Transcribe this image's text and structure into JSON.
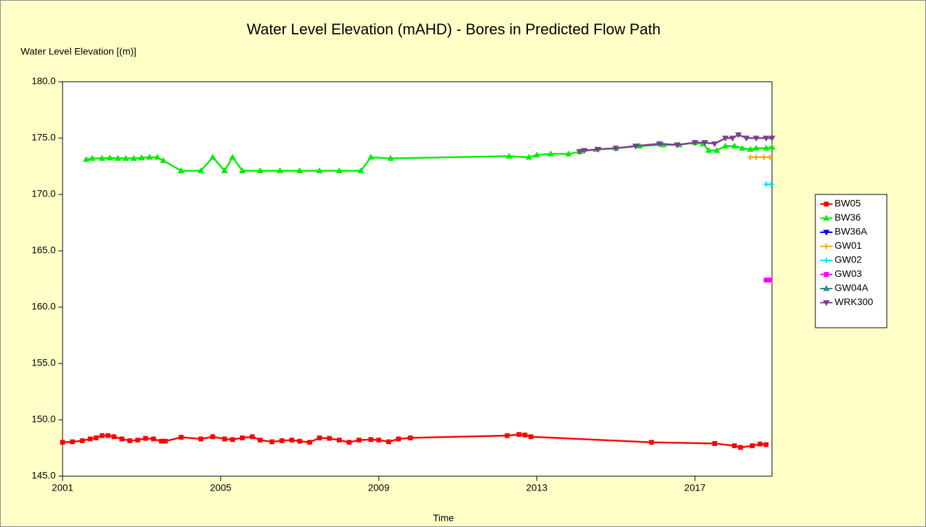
{
  "chart_data": {
    "type": "line",
    "title": "Water Level Elevation (mAHD) - Bores in Predicted Flow Path",
    "y_label": "Water Level Elevation [(m)]",
    "x_label": "Time",
    "xlim": [
      2001,
      2018.95
    ],
    "xticks": [
      2001,
      2005,
      2009,
      2013,
      2017
    ],
    "ylim": [
      145,
      180
    ],
    "yticks": [
      {
        "value": 145,
        "label": "145.0"
      },
      {
        "value": 150,
        "label": "150.0"
      },
      {
        "value": 155,
        "label": "155.0"
      },
      {
        "value": 160,
        "label": "160.0"
      },
      {
        "value": 165,
        "label": "165.0"
      },
      {
        "value": 170,
        "label": "170.0"
      },
      {
        "value": 175,
        "label": "175.0"
      },
      {
        "value": 180,
        "label": "180.0"
      }
    ],
    "legend": "right",
    "series": [
      {
        "name": "BW05",
        "color": "#ff0000",
        "marker": "square",
        "x": [
          2001.0,
          2001.25,
          2001.5,
          2001.7,
          2001.85,
          2002.0,
          2002.15,
          2002.3,
          2002.5,
          2002.7,
          2002.9,
          2003.1,
          2003.3,
          2003.5,
          2003.6,
          2004.0,
          2004.5,
          2004.8,
          2005.1,
          2005.3,
          2005.55,
          2005.8,
          2006.0,
          2006.3,
          2006.55,
          2006.8,
          2007.0,
          2007.25,
          2007.5,
          2007.75,
          2008.0,
          2008.25,
          2008.5,
          2008.8,
          2009.0,
          2009.25,
          2009.5,
          2009.8,
          2012.25,
          2012.55,
          2012.7,
          2012.85,
          2015.9,
          2017.5,
          2018.0,
          2018.15,
          2018.45,
          2018.65,
          2018.8
        ],
        "values": [
          148.0,
          148.05,
          148.15,
          148.3,
          148.4,
          148.6,
          148.6,
          148.5,
          148.3,
          148.15,
          148.2,
          148.35,
          148.3,
          148.1,
          148.1,
          148.45,
          148.3,
          148.5,
          148.3,
          148.25,
          148.4,
          148.5,
          148.2,
          148.05,
          148.15,
          148.2,
          148.1,
          148.0,
          148.4,
          148.35,
          148.2,
          148.0,
          148.2,
          148.25,
          148.2,
          148.05,
          148.3,
          148.4,
          148.6,
          148.7,
          148.65,
          148.5,
          148.0,
          147.9,
          147.7,
          147.55,
          147.7,
          147.85,
          147.8
        ]
      },
      {
        "name": "BW36",
        "color": "#00ee00",
        "marker": "triangle",
        "x": [
          2001.6,
          2001.75,
          2002.0,
          2002.2,
          2002.4,
          2002.6,
          2002.8,
          2003.0,
          2003.2,
          2003.4,
          2003.55,
          2004.0,
          2004.5,
          2004.8,
          2005.1,
          2005.3,
          2005.55,
          2006.0,
          2006.5,
          2007.0,
          2007.5,
          2008.0,
          2008.55,
          2008.8,
          2009.3,
          2012.3,
          2012.8,
          2013.0,
          2013.35,
          2013.8,
          2014.1,
          2014.5,
          2015.0,
          2015.6,
          2016.2,
          2016.6,
          2017.0,
          2017.2,
          2017.35,
          2017.55,
          2017.77,
          2018.0,
          2018.2,
          2018.4,
          2018.55,
          2018.8,
          2018.95
        ],
        "values": [
          173.1,
          173.2,
          173.2,
          173.25,
          173.2,
          173.2,
          173.2,
          173.25,
          173.3,
          173.3,
          173.0,
          172.1,
          172.1,
          173.3,
          172.1,
          173.3,
          172.1,
          172.1,
          172.1,
          172.1,
          172.1,
          172.1,
          172.1,
          173.3,
          173.2,
          173.4,
          173.3,
          173.5,
          173.6,
          173.6,
          173.8,
          174.0,
          174.1,
          174.3,
          174.4,
          174.4,
          174.6,
          174.5,
          173.9,
          173.9,
          174.3,
          174.3,
          174.1,
          174.0,
          174.1,
          174.1,
          174.2
        ]
      },
      {
        "name": "BW36A",
        "color": "#0000ff",
        "marker": "down-triangle",
        "x": [],
        "values": []
      },
      {
        "name": "GW01",
        "color": "#ffa500",
        "marker": "cross",
        "x": [
          2018.4,
          2018.55,
          2018.75,
          2018.9
        ],
        "values": [
          173.3,
          173.3,
          173.3,
          173.3
        ]
      },
      {
        "name": "GW02",
        "color": "#00e5ee",
        "marker": "cross",
        "x": [
          2018.8,
          2018.93
        ],
        "values": [
          170.9,
          170.9
        ]
      },
      {
        "name": "GW03",
        "color": "#ff00ff",
        "marker": "square",
        "x": [
          2018.8,
          2018.9
        ],
        "values": [
          162.4,
          162.4
        ]
      },
      {
        "name": "GW04A",
        "color": "#2e8b8b",
        "marker": "triangle",
        "x": [],
        "values": []
      },
      {
        "name": "WRK300",
        "color": "#7b3f8f",
        "marker": "down-triangle",
        "x": [
          2014.08,
          2014.2,
          2014.55,
          2015.0,
          2015.5,
          2016.1,
          2016.55,
          2017.0,
          2017.25,
          2017.5,
          2017.77,
          2017.95,
          2018.1,
          2018.3,
          2018.55,
          2018.8,
          2018.95
        ],
        "values": [
          173.8,
          173.9,
          174.0,
          174.1,
          174.3,
          174.5,
          174.4,
          174.6,
          174.6,
          174.5,
          175.0,
          175.0,
          175.3,
          175.0,
          175.0,
          175.0,
          175.0
        ]
      }
    ]
  }
}
